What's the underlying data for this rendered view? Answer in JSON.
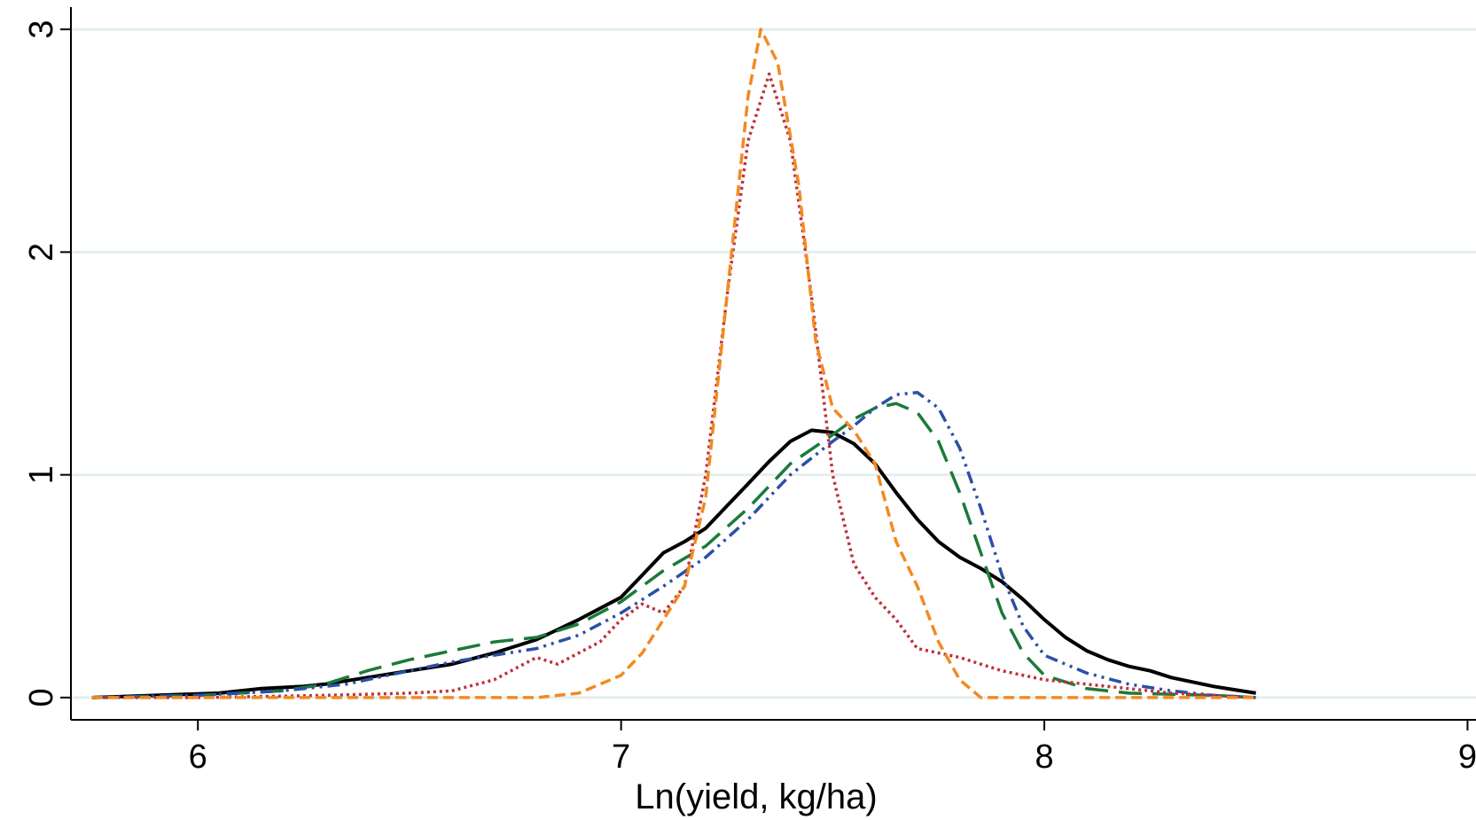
{
  "chart_data": {
    "type": "line",
    "title": "",
    "xlabel": "Ln(yield, kg/ha)",
    "ylabel": "",
    "xlim": [
      5.7,
      9.02
    ],
    "ylim": [
      -0.1,
      3.1
    ],
    "x_ticks": [
      6,
      7,
      8,
      9
    ],
    "y_ticks": [
      0,
      1,
      2,
      3
    ],
    "grid": "horizontal",
    "legend": "none",
    "series": [
      {
        "color": "#000000",
        "dash": "solid",
        "points": [
          [
            5.75,
            0.0
          ],
          [
            5.9,
            0.01
          ],
          [
            6.05,
            0.02
          ],
          [
            6.15,
            0.04
          ],
          [
            6.25,
            0.05
          ],
          [
            6.3,
            0.06
          ],
          [
            6.4,
            0.09
          ],
          [
            6.5,
            0.12
          ],
          [
            6.6,
            0.15
          ],
          [
            6.7,
            0.2
          ],
          [
            6.8,
            0.26
          ],
          [
            6.9,
            0.35
          ],
          [
            7.0,
            0.45
          ],
          [
            7.05,
            0.55
          ],
          [
            7.1,
            0.65
          ],
          [
            7.15,
            0.7
          ],
          [
            7.2,
            0.76
          ],
          [
            7.25,
            0.86
          ],
          [
            7.3,
            0.96
          ],
          [
            7.35,
            1.06
          ],
          [
            7.4,
            1.15
          ],
          [
            7.45,
            1.2
          ],
          [
            7.5,
            1.19
          ],
          [
            7.55,
            1.14
          ],
          [
            7.6,
            1.05
          ],
          [
            7.65,
            0.92
          ],
          [
            7.7,
            0.8
          ],
          [
            7.75,
            0.7
          ],
          [
            7.8,
            0.63
          ],
          [
            7.85,
            0.58
          ],
          [
            7.9,
            0.52
          ],
          [
            7.95,
            0.44
          ],
          [
            8.0,
            0.35
          ],
          [
            8.05,
            0.27
          ],
          [
            8.1,
            0.21
          ],
          [
            8.15,
            0.17
          ],
          [
            8.2,
            0.14
          ],
          [
            8.25,
            0.12
          ],
          [
            8.3,
            0.09
          ],
          [
            8.4,
            0.05
          ],
          [
            8.5,
            0.02
          ]
        ]
      },
      {
        "color": "#1a7a3a",
        "dash": "long-dash",
        "points": [
          [
            5.75,
            0.0
          ],
          [
            6.0,
            0.01
          ],
          [
            6.1,
            0.02
          ],
          [
            6.2,
            0.03
          ],
          [
            6.3,
            0.06
          ],
          [
            6.4,
            0.12
          ],
          [
            6.5,
            0.17
          ],
          [
            6.6,
            0.21
          ],
          [
            6.7,
            0.25
          ],
          [
            6.8,
            0.27
          ],
          [
            6.9,
            0.33
          ],
          [
            7.0,
            0.43
          ],
          [
            7.1,
            0.57
          ],
          [
            7.2,
            0.68
          ],
          [
            7.3,
            0.85
          ],
          [
            7.4,
            1.05
          ],
          [
            7.5,
            1.18
          ],
          [
            7.55,
            1.25
          ],
          [
            7.6,
            1.3
          ],
          [
            7.65,
            1.32
          ],
          [
            7.7,
            1.28
          ],
          [
            7.75,
            1.15
          ],
          [
            7.8,
            0.92
          ],
          [
            7.85,
            0.65
          ],
          [
            7.9,
            0.38
          ],
          [
            7.95,
            0.2
          ],
          [
            8.0,
            0.1
          ],
          [
            8.1,
            0.04
          ],
          [
            8.2,
            0.02
          ],
          [
            8.4,
            0.01
          ],
          [
            8.5,
            0.0
          ]
        ]
      },
      {
        "color": "#2a4fa8",
        "dash": "dash-dot",
        "points": [
          [
            5.75,
            0.0
          ],
          [
            6.0,
            0.01
          ],
          [
            6.2,
            0.03
          ],
          [
            6.35,
            0.06
          ],
          [
            6.5,
            0.12
          ],
          [
            6.6,
            0.16
          ],
          [
            6.7,
            0.19
          ],
          [
            6.8,
            0.22
          ],
          [
            6.9,
            0.28
          ],
          [
            7.0,
            0.38
          ],
          [
            7.1,
            0.5
          ],
          [
            7.2,
            0.63
          ],
          [
            7.3,
            0.8
          ],
          [
            7.4,
            1.0
          ],
          [
            7.5,
            1.15
          ],
          [
            7.55,
            1.22
          ],
          [
            7.6,
            1.3
          ],
          [
            7.65,
            1.36
          ],
          [
            7.7,
            1.37
          ],
          [
            7.75,
            1.3
          ],
          [
            7.8,
            1.12
          ],
          [
            7.85,
            0.85
          ],
          [
            7.9,
            0.55
          ],
          [
            7.95,
            0.32
          ],
          [
            8.0,
            0.19
          ],
          [
            8.1,
            0.11
          ],
          [
            8.2,
            0.06
          ],
          [
            8.3,
            0.03
          ],
          [
            8.4,
            0.01
          ],
          [
            8.5,
            0.0
          ]
        ]
      },
      {
        "color": "#c0303a",
        "dash": "dotted",
        "points": [
          [
            5.75,
            0.0
          ],
          [
            6.0,
            0.0
          ],
          [
            6.3,
            0.01
          ],
          [
            6.5,
            0.02
          ],
          [
            6.6,
            0.03
          ],
          [
            6.7,
            0.08
          ],
          [
            6.8,
            0.18
          ],
          [
            6.85,
            0.15
          ],
          [
            6.9,
            0.2
          ],
          [
            6.95,
            0.25
          ],
          [
            7.0,
            0.35
          ],
          [
            7.05,
            0.42
          ],
          [
            7.1,
            0.38
          ],
          [
            7.15,
            0.5
          ],
          [
            7.2,
            1.0
          ],
          [
            7.25,
            1.8
          ],
          [
            7.3,
            2.5
          ],
          [
            7.35,
            2.8
          ],
          [
            7.4,
            2.5
          ],
          [
            7.45,
            1.8
          ],
          [
            7.5,
            1.0
          ],
          [
            7.55,
            0.6
          ],
          [
            7.6,
            0.45
          ],
          [
            7.65,
            0.35
          ],
          [
            7.7,
            0.22
          ],
          [
            7.75,
            0.2
          ],
          [
            7.8,
            0.18
          ],
          [
            7.85,
            0.15
          ],
          [
            7.9,
            0.12
          ],
          [
            8.0,
            0.08
          ],
          [
            8.1,
            0.06
          ],
          [
            8.2,
            0.04
          ],
          [
            8.3,
            0.02
          ],
          [
            8.4,
            0.01
          ],
          [
            8.5,
            0.0
          ]
        ]
      },
      {
        "color": "#f28a22",
        "dash": "short-dash",
        "points": [
          [
            5.75,
            0.0
          ],
          [
            6.5,
            0.0
          ],
          [
            6.8,
            0.0
          ],
          [
            6.9,
            0.02
          ],
          [
            7.0,
            0.1
          ],
          [
            7.05,
            0.2
          ],
          [
            7.1,
            0.35
          ],
          [
            7.15,
            0.5
          ],
          [
            7.2,
            0.9
          ],
          [
            7.25,
            1.8
          ],
          [
            7.3,
            2.7
          ],
          [
            7.33,
            3.0
          ],
          [
            7.37,
            2.85
          ],
          [
            7.42,
            2.3
          ],
          [
            7.46,
            1.6
          ],
          [
            7.5,
            1.3
          ],
          [
            7.55,
            1.2
          ],
          [
            7.6,
            1.05
          ],
          [
            7.65,
            0.7
          ],
          [
            7.7,
            0.5
          ],
          [
            7.75,
            0.25
          ],
          [
            7.8,
            0.08
          ],
          [
            7.85,
            0.0
          ],
          [
            8.0,
            0.0
          ],
          [
            8.5,
            0.0
          ]
        ]
      }
    ]
  }
}
